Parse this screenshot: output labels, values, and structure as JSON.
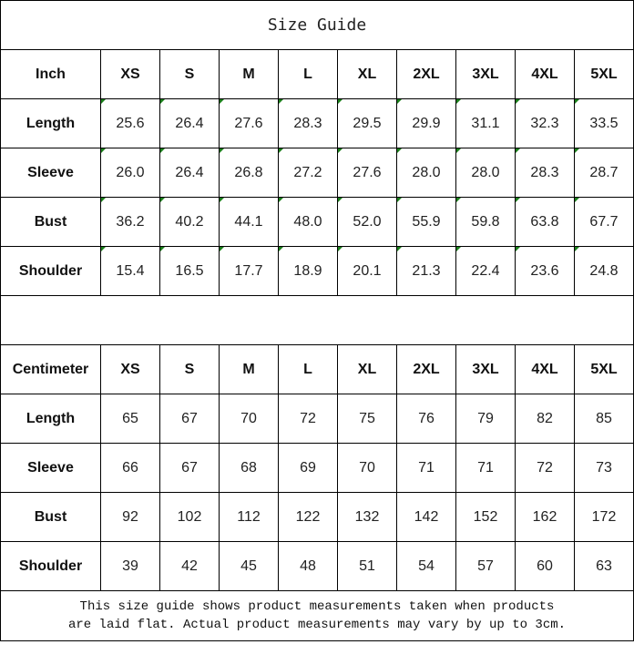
{
  "title": "Size Guide",
  "sizes": [
    "XS",
    "S",
    "M",
    "L",
    "XL",
    "2XL",
    "3XL",
    "4XL",
    "5XL"
  ],
  "inch": {
    "unit_label": "Inch",
    "rows": [
      {
        "label": "Length",
        "values": [
          "25.6",
          "26.4",
          "27.6",
          "28.3",
          "29.5",
          "29.9",
          "31.1",
          "32.3",
          "33.5"
        ]
      },
      {
        "label": "Sleeve",
        "values": [
          "26.0",
          "26.4",
          "26.8",
          "27.2",
          "27.6",
          "28.0",
          "28.0",
          "28.3",
          "28.7"
        ]
      },
      {
        "label": "Bust",
        "values": [
          "36.2",
          "40.2",
          "44.1",
          "48.0",
          "52.0",
          "55.9",
          "59.8",
          "63.8",
          "67.7"
        ]
      },
      {
        "label": "Shoulder",
        "values": [
          "15.4",
          "16.5",
          "17.7",
          "18.9",
          "20.1",
          "21.3",
          "22.4",
          "23.6",
          "24.8"
        ]
      }
    ]
  },
  "centimeter": {
    "unit_label": "Centimeter",
    "rows": [
      {
        "label": "Length",
        "values": [
          "65",
          "67",
          "70",
          "72",
          "75",
          "76",
          "79",
          "82",
          "85"
        ]
      },
      {
        "label": "Sleeve",
        "values": [
          "66",
          "67",
          "68",
          "69",
          "70",
          "71",
          "71",
          "72",
          "73"
        ]
      },
      {
        "label": "Bust",
        "values": [
          "92",
          "102",
          "112",
          "122",
          "132",
          "142",
          "152",
          "162",
          "172"
        ]
      },
      {
        "label": "Shoulder",
        "values": [
          "39",
          "42",
          "45",
          "48",
          "51",
          "54",
          "57",
          "60",
          "63"
        ]
      }
    ]
  },
  "note_line1": "This size guide shows product measurements taken when products",
  "note_line2": "are laid flat. Actual product measurements may vary by up to 3cm.",
  "indicator_color": "#1a7f1a"
}
